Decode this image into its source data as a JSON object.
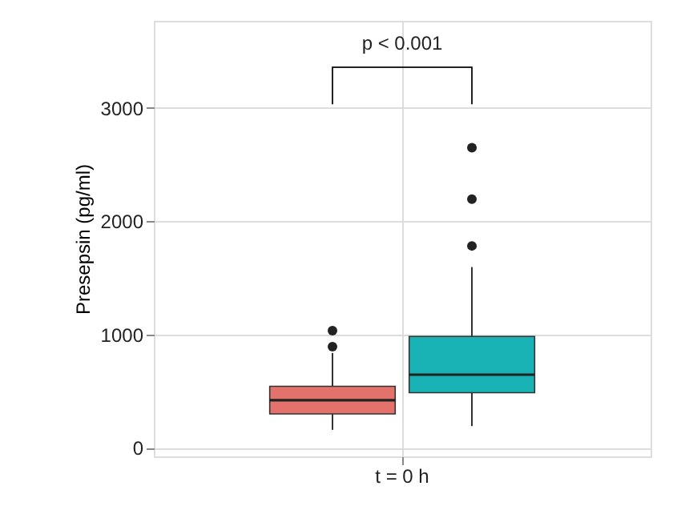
{
  "chart_data": {
    "type": "box",
    "categories": [
      "t = 0 h"
    ],
    "ylabel": "Presepsin (pg/ml)",
    "ylim": [
      -75,
      3770
    ],
    "yticks": [
      0,
      1000,
      2000,
      3000
    ],
    "grid": true,
    "annotations": [
      "p < 0.001"
    ],
    "series": [
      {
        "color": "#e2726b",
        "boxes": [
          {
            "low": 159,
            "q1": 300,
            "median": 421,
            "q3": 543,
            "high": 838,
            "outliers": [
              894,
              1034
            ]
          }
        ]
      },
      {
        "color": "#19b2b5",
        "boxes": [
          {
            "low": 192,
            "q1": 487,
            "median": 646,
            "q3": 983,
            "high": 1596,
            "outliers": [
              1783,
              2195,
              2649
            ]
          }
        ]
      }
    ]
  }
}
